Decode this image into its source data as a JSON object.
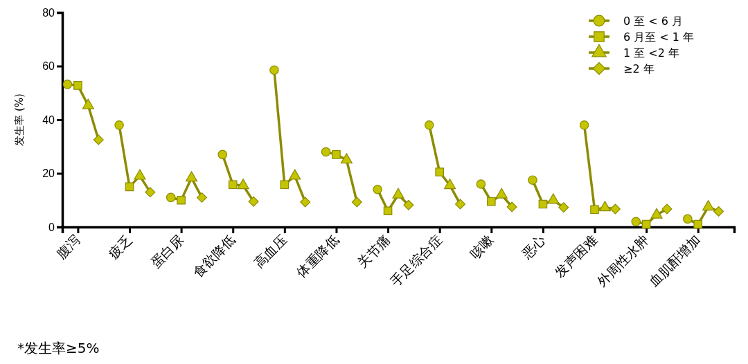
{
  "chart_data": {
    "type": "scatter",
    "ylabel": "发生率 (%)",
    "categories": [
      null,
      "腹泻",
      null,
      null,
      null,
      null,
      "疲乏",
      null,
      null,
      null,
      null,
      "蛋白尿",
      null,
      null,
      null,
      null,
      "食欲降低",
      null,
      null,
      null,
      null,
      "高血压",
      null,
      null,
      null,
      null,
      "体重降低",
      null,
      null,
      null,
      null,
      "关节痛",
      null,
      null,
      null,
      null,
      "手足综合症",
      null,
      null,
      null,
      null,
      "咳嗽",
      null,
      null,
      null,
      null,
      "恶心",
      null,
      null,
      null,
      null,
      "发声困难",
      null,
      null,
      null,
      null,
      "外周性水肿",
      null,
      null,
      null,
      null,
      "血肌酐增加",
      null,
      null,
      null
    ],
    "series": [
      {
        "type": "line",
        "color": "#8c8c00",
        "marker": "none",
        "values": [
          53.2,
          52.8,
          45.3,
          32.5,
          null,
          38,
          15,
          19,
          13,
          null,
          11,
          10,
          18.3,
          11,
          null,
          27,
          15.8,
          15.5,
          9.5,
          null,
          58.5,
          15.8,
          19,
          9.3,
          null,
          28,
          27,
          25,
          9.3,
          null,
          14,
          6,
          12,
          8.2,
          null,
          38,
          20.5,
          15.5,
          8.5,
          null,
          16,
          9.5,
          12,
          7.5,
          null,
          17.5,
          8.5,
          10,
          7.3,
          null,
          38,
          6.5,
          7.2,
          6.7,
          null,
          2,
          1,
          4.5,
          6.7,
          null,
          3,
          1,
          7.5,
          5.8,
          null
        ]
      },
      {
        "name": "0 至 < 6 月",
        "color": "#c4c400",
        "marker": "circle",
        "values": [
          53.2,
          null,
          null,
          null,
          null,
          38,
          null,
          null,
          null,
          null,
          11,
          null,
          null,
          null,
          null,
          27,
          null,
          null,
          null,
          null,
          58.5,
          null,
          null,
          null,
          null,
          28,
          null,
          null,
          null,
          null,
          14,
          null,
          null,
          null,
          null,
          38,
          null,
          null,
          null,
          null,
          16,
          null,
          null,
          null,
          null,
          17.5,
          null,
          null,
          null,
          null,
          38,
          null,
          null,
          null,
          null,
          2,
          null,
          null,
          null,
          null,
          3,
          null,
          null,
          null,
          null
        ]
      },
      {
        "name": "6 月至 < 1 年",
        "color": "#c4c400",
        "marker": "square",
        "values": [
          null,
          52.8,
          null,
          null,
          null,
          null,
          15,
          null,
          null,
          null,
          null,
          10,
          null,
          null,
          null,
          null,
          15.8,
          null,
          null,
          null,
          null,
          15.8,
          null,
          null,
          null,
          null,
          27,
          null,
          null,
          null,
          null,
          6,
          null,
          null,
          null,
          null,
          20.5,
          null,
          null,
          null,
          null,
          9.5,
          null,
          null,
          null,
          null,
          8.5,
          null,
          null,
          null,
          null,
          6.5,
          null,
          null,
          null,
          null,
          1,
          null,
          null,
          null,
          null,
          1,
          null,
          null,
          null
        ]
      },
      {
        "name": "1 至 <2 年",
        "color": "#c4c400",
        "marker": "triangle",
        "values": [
          null,
          null,
          45.3,
          null,
          null,
          null,
          null,
          19,
          null,
          null,
          null,
          null,
          18.3,
          null,
          null,
          null,
          null,
          15.5,
          null,
          null,
          null,
          null,
          19,
          null,
          null,
          null,
          null,
          25,
          null,
          null,
          null,
          null,
          12,
          null,
          null,
          null,
          null,
          15.5,
          null,
          null,
          null,
          null,
          12,
          null,
          null,
          null,
          null,
          10,
          null,
          null,
          null,
          null,
          7.2,
          null,
          null,
          null,
          null,
          4.5,
          null,
          null,
          null,
          null,
          7.5,
          null,
          null
        ]
      },
      {
        "name": "≥2 年",
        "color": "#c4c400",
        "marker": "diamond",
        "values": [
          null,
          null,
          null,
          32.5,
          null,
          null,
          null,
          null,
          13,
          null,
          null,
          null,
          null,
          11,
          null,
          null,
          null,
          null,
          9.5,
          null,
          null,
          null,
          null,
          9.3,
          null,
          null,
          null,
          null,
          9.3,
          null,
          null,
          null,
          null,
          8.2,
          null,
          null,
          null,
          null,
          8.5,
          null,
          null,
          null,
          null,
          7.5,
          null,
          null,
          null,
          null,
          7.3,
          null,
          null,
          null,
          null,
          6.7,
          null,
          null,
          null,
          null,
          6.7,
          null,
          null,
          null,
          null,
          5.8,
          null
        ]
      }
    ],
    "ylim": [
      0,
      80
    ],
    "yticks": [
      0,
      20,
      40,
      60,
      80
    ],
    "grid": false,
    "legend": "top right",
    "annotations": [
      "*发生率≥5%"
    ]
  }
}
